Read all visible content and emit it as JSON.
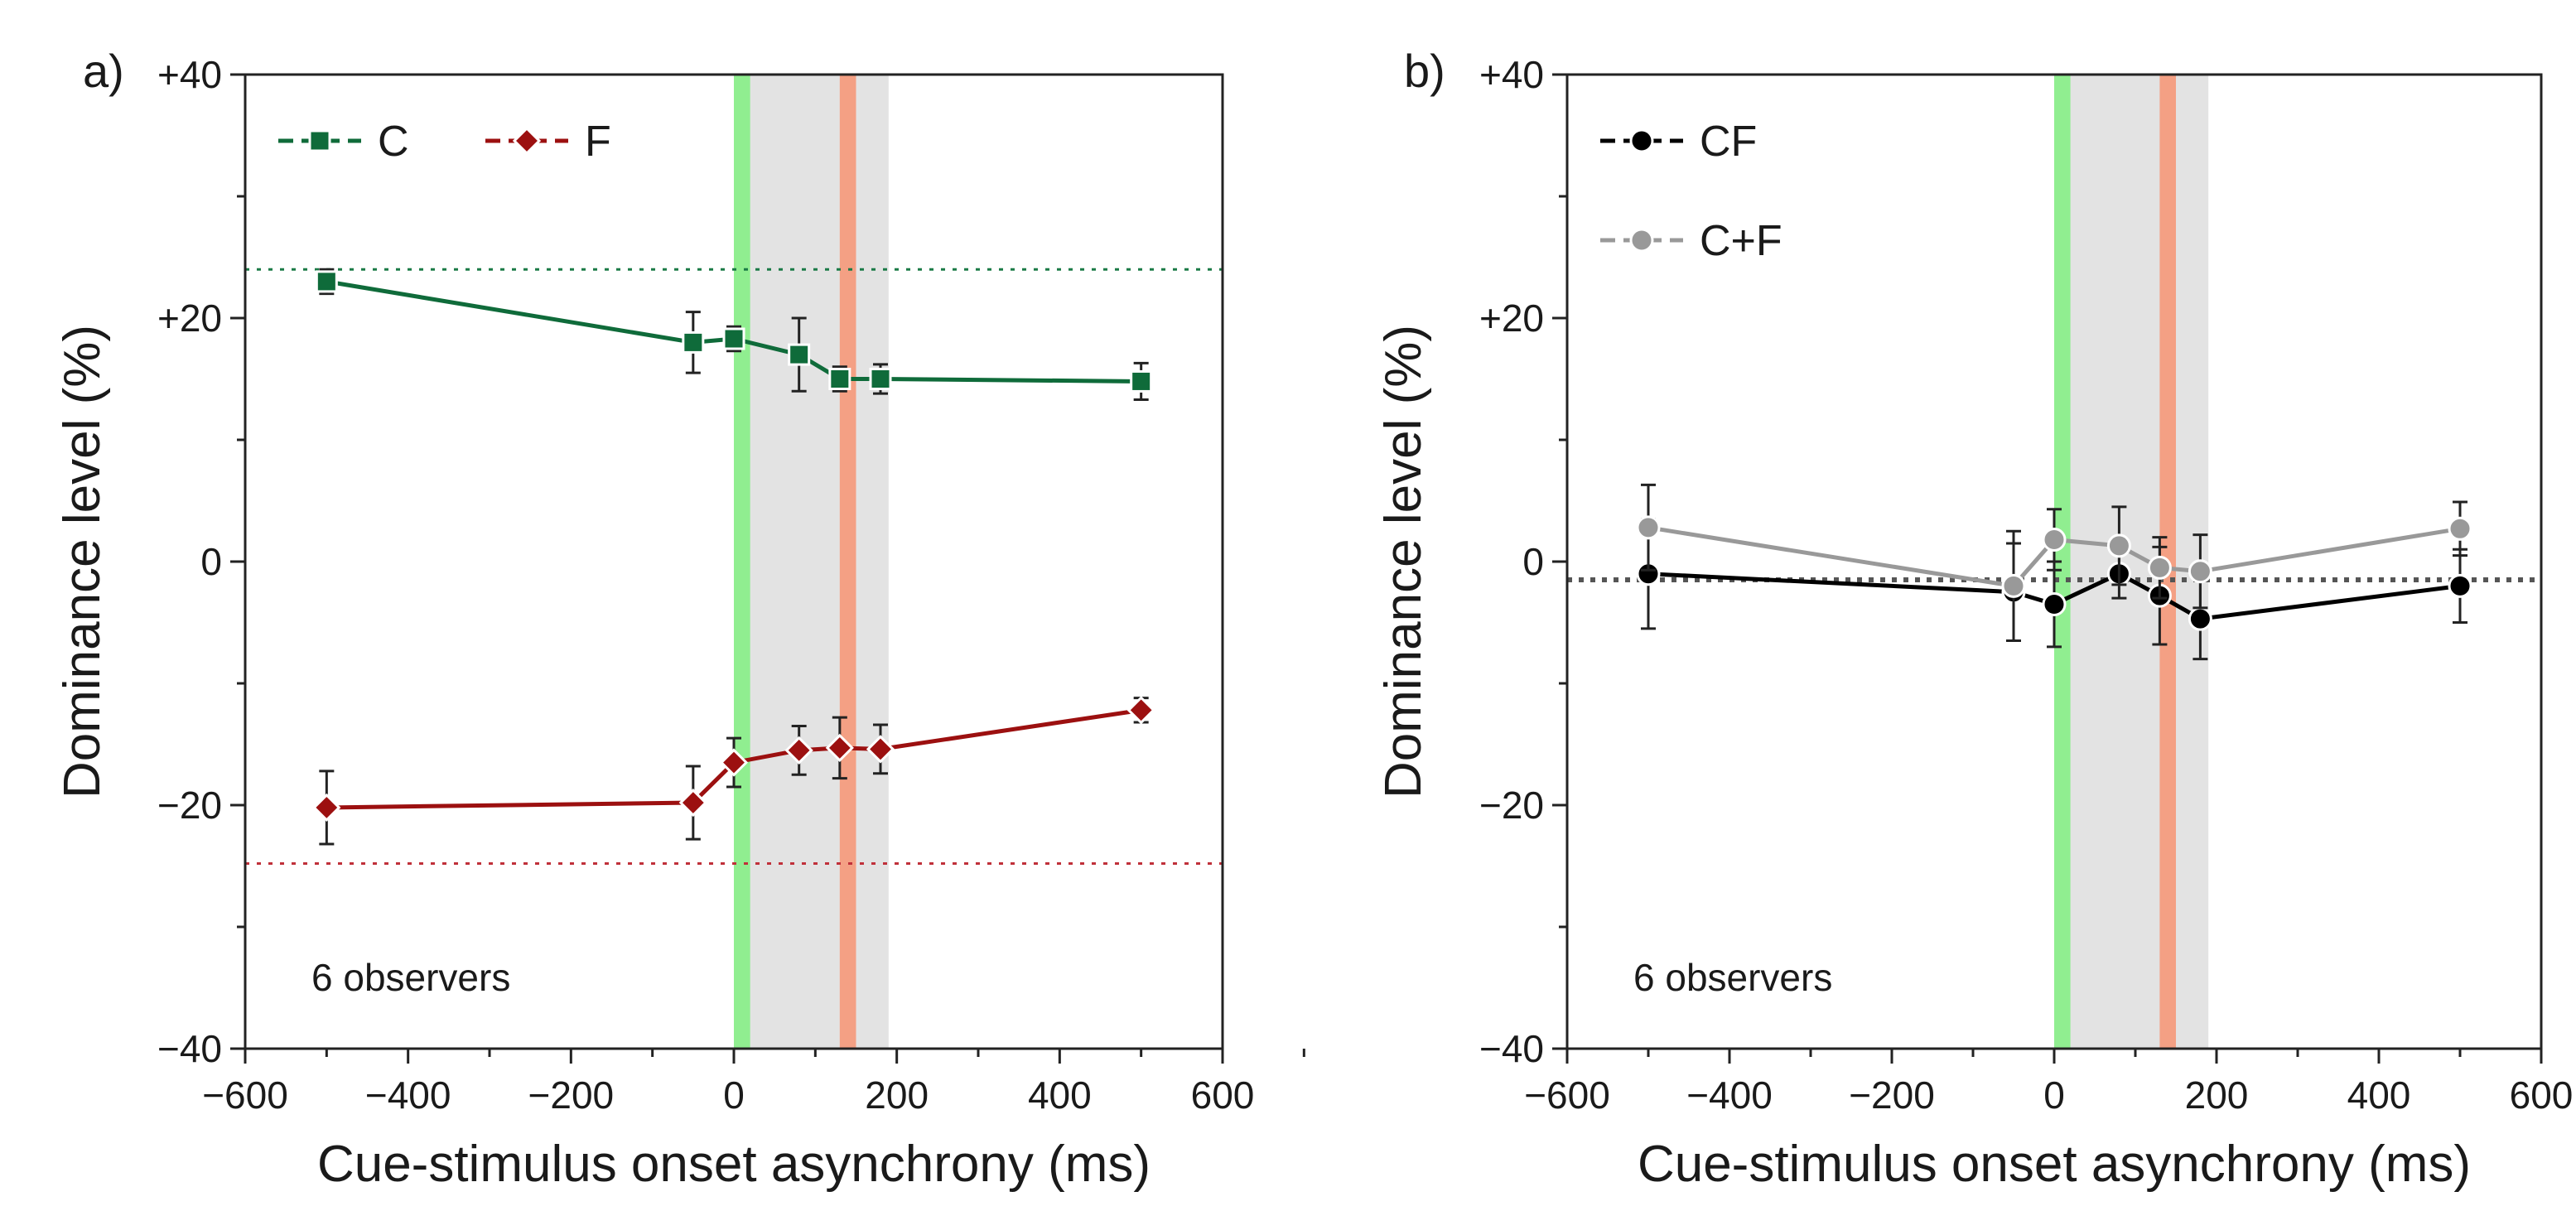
{
  "chart_data": [
    {
      "type": "line",
      "panel_label": "a)",
      "xlabel": "Cue-stimulus onset asynchrony (ms)",
      "ylabel": "Dominance level (%)",
      "xlim": [
        -600,
        600
      ],
      "ylim": [
        -40,
        40
      ],
      "xticks": [
        -600,
        -400,
        -200,
        0,
        200,
        400,
        600
      ],
      "xtick_labels": [
        "−600",
        "−400",
        "−200",
        "0",
        "200",
        "400",
        "600"
      ],
      "yticks": [
        -40,
        -20,
        0,
        20,
        40
      ],
      "ytick_labels": [
        "−40",
        "−20",
        "0",
        "+20",
        "+40"
      ],
      "annotation": "6 observers",
      "legend_placement": "top-left",
      "bands": [
        {
          "name": "gray",
          "from": 0,
          "to": 190,
          "color": "#e3e3e3"
        },
        {
          "name": "green",
          "from": 0,
          "to": 20,
          "color": "#90ee90"
        },
        {
          "name": "orange",
          "from": 130,
          "to": 150,
          "color": "#f4a084"
        }
      ],
      "reference_lines": [
        {
          "series": "C",
          "y": 24,
          "color": "#1a7a46"
        },
        {
          "series": "F",
          "y": -24.8,
          "color": "#c0303a"
        }
      ],
      "x": [
        -500,
        -50,
        0,
        80,
        130,
        180,
        500
      ],
      "series": [
        {
          "name": "C",
          "marker": "square",
          "color": "#0f6b3a",
          "values": [
            23,
            18,
            18.3,
            17,
            15,
            15,
            14.8
          ],
          "errors": [
            1,
            2.5,
            1,
            3,
            1,
            1.2,
            1.5
          ]
        },
        {
          "name": "F",
          "marker": "diamond",
          "color": "#9c1010",
          "values": [
            -20.2,
            -19.8,
            -16.5,
            -15.5,
            -15.3,
            -15.4,
            -12.2
          ],
          "errors": [
            3,
            3,
            2,
            2,
            2.5,
            2,
            1
          ]
        }
      ]
    },
    {
      "type": "line",
      "panel_label": "b)",
      "xlabel": "Cue-stimulus onset asynchrony (ms)",
      "ylabel": "Dominance level (%)",
      "xlim": [
        -600,
        600
      ],
      "ylim": [
        -40,
        40
      ],
      "xticks": [
        -600,
        -400,
        -200,
        0,
        200,
        400,
        600
      ],
      "xtick_labels": [
        "−600",
        "−400",
        "−200",
        "0",
        "200",
        "400",
        "600"
      ],
      "yticks": [
        -40,
        -20,
        0,
        20,
        40
      ],
      "ytick_labels": [
        "−40",
        "−20",
        "0",
        "+20",
        "+40"
      ],
      "annotation": "6 observers",
      "legend_placement": "top-left",
      "bands": [
        {
          "name": "gray",
          "from": 0,
          "to": 190,
          "color": "#e3e3e3"
        },
        {
          "name": "green",
          "from": 0,
          "to": 20,
          "color": "#90ee90"
        },
        {
          "name": "orange",
          "from": 130,
          "to": 150,
          "color": "#f4a084"
        }
      ],
      "reference_lines": [
        {
          "series": "CF",
          "y": -1.5,
          "color": "#555555"
        }
      ],
      "x": [
        -500,
        -50,
        0,
        80,
        130,
        180,
        500
      ],
      "series": [
        {
          "name": "CF",
          "marker": "circle",
          "color": "#000000",
          "values": [
            -1,
            -2.5,
            -3.5,
            -1,
            -2.8,
            -4.7,
            -2
          ],
          "errors": [
            4.5,
            4,
            3.5,
            2,
            4,
            3.3,
            3
          ]
        },
        {
          "name": "C+F",
          "marker": "circle",
          "color": "#999999",
          "values": [
            2.8,
            -2,
            1.8,
            1.3,
            -0.5,
            -0.8,
            2.7
          ],
          "errors": [
            3.5,
            4.5,
            2.5,
            3.2,
            2.5,
            3,
            2.2
          ]
        }
      ]
    }
  ]
}
